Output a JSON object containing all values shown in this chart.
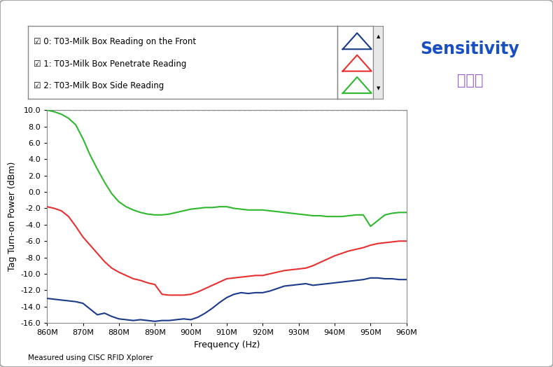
{
  "title_en": "Sensitivity",
  "title_cn": "灵敏度",
  "xlabel": "Frequency (Hz)",
  "ylabel": "Tag Turn-on Power (dBm)",
  "footnote": "Measured using CISC RFID Xplorer",
  "xlim": [
    860000000,
    960000000
  ],
  "ylim": [
    -16,
    10
  ],
  "ytick_vals": [
    -16,
    -14,
    -12,
    -10,
    -8,
    -6,
    -4,
    -2,
    0,
    2,
    4,
    6,
    8,
    10
  ],
  "ytick_labels": [
    "-16.0",
    "-14.0",
    "-12.0",
    "-10.0",
    "-8.0",
    "-6.0",
    "-4.0",
    "-2.0",
    "0.0",
    "2.0",
    "4.0",
    "6.0",
    "8.0",
    "10.0"
  ],
  "xtick_labels": [
    "860M",
    "870M",
    "880M",
    "890M",
    "900M",
    "910M",
    "920M",
    "930M",
    "940M",
    "950M",
    "960M"
  ],
  "xtick_vals": [
    860000000,
    870000000,
    880000000,
    890000000,
    900000000,
    910000000,
    920000000,
    930000000,
    940000000,
    950000000,
    960000000
  ],
  "dashed_line_y": 10,
  "legend_labels": [
    "☑ 0: T03-Milk Box Reading on the Front",
    "☑ 1: T03-Milk Box Penetrate Reading",
    "☑ 2: T03-Milk Box Side Reading"
  ],
  "line_colors": [
    "#1a3a8a",
    "#e83030",
    "#2db82d"
  ],
  "bg_color": "#ffffff",
  "plot_bg_color": "#ffffff",
  "border_color": "#aaaaaa",
  "title_color_en": "#1a4fc4",
  "title_color_cn": "#9966cc",
  "series_blue_x": [
    860,
    862,
    864,
    866,
    868,
    870,
    872,
    874,
    876,
    878,
    880,
    882,
    884,
    886,
    888,
    890,
    892,
    894,
    896,
    898,
    900,
    902,
    904,
    906,
    908,
    910,
    912,
    914,
    916,
    918,
    920,
    922,
    924,
    926,
    928,
    930,
    932,
    934,
    936,
    938,
    940,
    942,
    944,
    946,
    948,
    950,
    952,
    954,
    956,
    958,
    960
  ],
  "series_blue_y": [
    -13.0,
    -13.1,
    -13.2,
    -13.3,
    -13.4,
    -13.6,
    -14.3,
    -15.0,
    -14.8,
    -15.2,
    -15.5,
    -15.6,
    -15.7,
    -15.6,
    -15.7,
    -15.8,
    -15.7,
    -15.7,
    -15.6,
    -15.5,
    -15.6,
    -15.3,
    -14.8,
    -14.2,
    -13.5,
    -12.9,
    -12.5,
    -12.3,
    -12.4,
    -12.3,
    -12.3,
    -12.1,
    -11.8,
    -11.5,
    -11.4,
    -11.3,
    -11.2,
    -11.4,
    -11.3,
    -11.2,
    -11.1,
    -11.0,
    -10.9,
    -10.8,
    -10.7,
    -10.5,
    -10.5,
    -10.6,
    -10.6,
    -10.7,
    -10.7
  ],
  "series_red_x": [
    860,
    862,
    864,
    866,
    868,
    870,
    872,
    874,
    876,
    878,
    880,
    882,
    884,
    886,
    888,
    890,
    892,
    894,
    896,
    898,
    900,
    902,
    904,
    906,
    908,
    910,
    912,
    914,
    916,
    918,
    920,
    922,
    924,
    926,
    928,
    930,
    932,
    934,
    936,
    938,
    940,
    942,
    944,
    946,
    948,
    950,
    952,
    954,
    956,
    958,
    960
  ],
  "series_red_y": [
    -1.8,
    -2.0,
    -2.3,
    -3.0,
    -4.2,
    -5.5,
    -6.5,
    -7.5,
    -8.5,
    -9.3,
    -9.8,
    -10.2,
    -10.6,
    -10.8,
    -11.1,
    -11.3,
    -12.5,
    -12.6,
    -12.6,
    -12.6,
    -12.5,
    -12.2,
    -11.8,
    -11.4,
    -11.0,
    -10.6,
    -10.5,
    -10.4,
    -10.3,
    -10.2,
    -10.2,
    -10.0,
    -9.8,
    -9.6,
    -9.5,
    -9.4,
    -9.3,
    -9.0,
    -8.6,
    -8.2,
    -7.8,
    -7.5,
    -7.2,
    -7.0,
    -6.8,
    -6.5,
    -6.3,
    -6.2,
    -6.1,
    -6.0,
    -6.0
  ],
  "series_green_x": [
    860,
    862,
    864,
    866,
    868,
    870,
    872,
    874,
    876,
    878,
    880,
    882,
    884,
    886,
    888,
    890,
    892,
    894,
    896,
    898,
    900,
    902,
    904,
    906,
    908,
    910,
    912,
    914,
    916,
    918,
    920,
    922,
    924,
    926,
    928,
    930,
    932,
    934,
    936,
    938,
    940,
    942,
    944,
    946,
    948,
    950,
    952,
    954,
    956,
    958,
    960
  ],
  "series_green_y": [
    10.0,
    9.8,
    9.5,
    9.0,
    8.2,
    6.5,
    4.5,
    2.8,
    1.2,
    -0.2,
    -1.2,
    -1.8,
    -2.2,
    -2.5,
    -2.7,
    -2.8,
    -2.8,
    -2.7,
    -2.5,
    -2.3,
    -2.1,
    -2.0,
    -1.9,
    -1.9,
    -1.8,
    -1.8,
    -2.0,
    -2.1,
    -2.2,
    -2.2,
    -2.2,
    -2.3,
    -2.4,
    -2.5,
    -2.6,
    -2.7,
    -2.8,
    -2.9,
    -2.9,
    -3.0,
    -3.0,
    -3.0,
    -2.9,
    -2.8,
    -2.8,
    -4.2,
    -3.5,
    -2.8,
    -2.6,
    -2.5,
    -2.5
  ]
}
